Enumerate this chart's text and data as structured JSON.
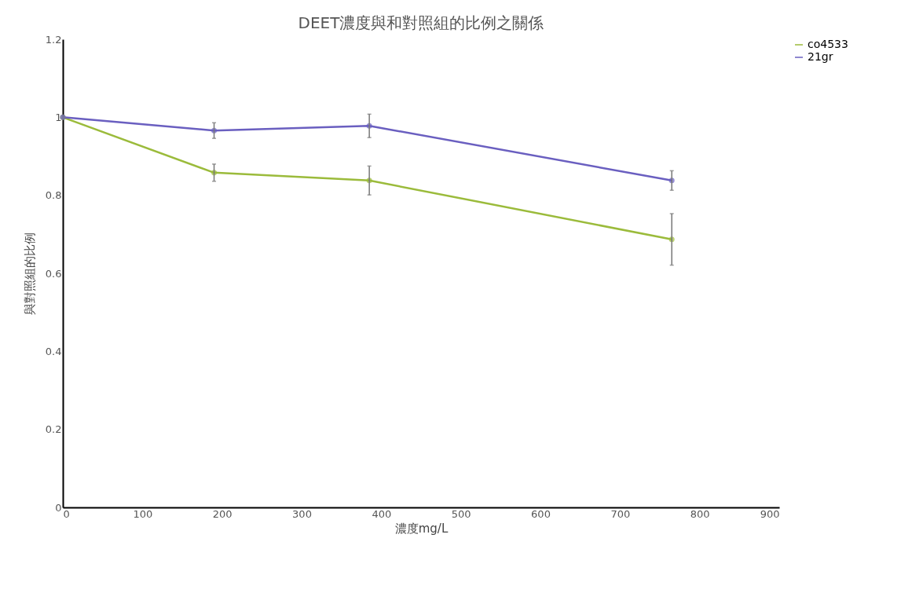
{
  "chart_data": {
    "type": "line",
    "title": "DEET濃度與和對照組的比例之關係",
    "xlabel": "濃度mg/L",
    "ylabel": "與對照組的比例",
    "x": [
      0,
      190,
      385,
      765
    ],
    "series": [
      {
        "name": "co4533",
        "color": "#9bbb3b",
        "values": [
          1,
          0.858,
          0.838,
          0.687
        ],
        "errors": [
          null,
          0.022,
          0.037,
          0.066
        ]
      },
      {
        "name": "21gr",
        "color": "#6a5fc0",
        "values": [
          1,
          0.966,
          0.978,
          0.838
        ],
        "errors": [
          null,
          0.02,
          0.03,
          0.025
        ]
      }
    ],
    "xlim": [
      0,
      900
    ],
    "xticks": [
      0,
      100,
      200,
      300,
      400,
      500,
      600,
      700,
      800,
      900
    ],
    "ylim": [
      0,
      1.2
    ],
    "yticks": [
      0,
      0.2,
      0.4,
      0.6,
      0.8,
      1,
      1.2
    ],
    "grid": false,
    "legend": "right",
    "marker": "circle",
    "line_style": "solid"
  }
}
